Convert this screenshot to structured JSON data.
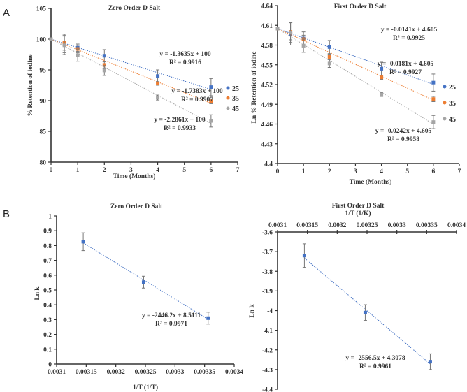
{
  "panels": {
    "a": "A",
    "b": "B"
  },
  "chart_data": [
    {
      "type": "scatter",
      "title": "Zero Order D Salt",
      "xlabel": "Time (Months)",
      "ylabel": "% Retention of iodine",
      "xlim": [
        0,
        7
      ],
      "ylim": [
        80,
        105
      ],
      "xticks": [
        "0",
        "1",
        "2",
        "3",
        "4",
        "5",
        "6",
        "7"
      ],
      "yticks": [
        "80",
        "85",
        "90",
        "95",
        "100",
        "105"
      ],
      "x": [
        0,
        0.5,
        1,
        2,
        4,
        6
      ],
      "series": [
        {
          "name": "25",
          "color": "#4472C4",
          "values": [
            100,
            99.3,
            98.6,
            97.3,
            94.0,
            92.2
          ],
          "errors": [
            0,
            1.5,
            0.6,
            1.0,
            1.0,
            1.4
          ],
          "trend": {
            "slope": -1.3635,
            "intercept": 100,
            "equation": "y = -1.3635x + 100",
            "r2": "R² = 0.9916"
          }
        },
        {
          "name": "35",
          "color": "#ED7D31",
          "values": [
            100,
            99.4,
            98.4,
            95.8,
            92.8,
            89.9
          ],
          "errors": [
            0,
            1.2,
            0.6,
            0.6,
            0.3,
            0.4
          ],
          "trend": {
            "slope": -1.7383,
            "intercept": 100,
            "equation": "y = -1.7383x + 100",
            "r2": "R² = 0.9907"
          }
        },
        {
          "name": "45",
          "color": "#A5A5A5",
          "values": [
            100,
            99.0,
            97.4,
            94.9,
            90.5,
            86.7
          ],
          "errors": [
            0,
            1.5,
            1.0,
            0.8,
            0.4,
            1.0
          ],
          "trend": {
            "slope": -2.2861,
            "intercept": 100,
            "equation": "y = -2.2861x + 100",
            "r2": "R² = 0.9933"
          }
        }
      ],
      "legend": "right"
    },
    {
      "type": "scatter",
      "title": "First Order D Salt",
      "xlabel": "Time (Months)",
      "ylabel": "Ln % Retention of iodine",
      "xlim": [
        0,
        7
      ],
      "ylim": [
        4.4,
        4.64
      ],
      "xticks": [
        "0",
        "1",
        "2",
        "3",
        "4",
        "5",
        "6",
        "7"
      ],
      "yticks": [
        "4.4",
        "4.43",
        "4.46",
        "4.49",
        "4.52",
        "4.55",
        "4.58",
        "4.61",
        "4.64"
      ],
      "x": [
        0,
        0.5,
        1,
        2,
        4,
        6
      ],
      "series": [
        {
          "name": "25",
          "color": "#4472C4",
          "values": [
            4.605,
            4.597,
            4.59,
            4.577,
            4.544,
            4.523
          ],
          "errors": [
            0,
            0.017,
            0.01,
            0.01,
            0.01,
            0.013
          ],
          "trend": {
            "slope": -0.0141,
            "intercept": 4.605,
            "equation": "y = -0.0141x + 4.605",
            "r2": "R² = 0.9925"
          }
        },
        {
          "name": "35",
          "color": "#ED7D31",
          "values": [
            4.605,
            4.6,
            4.589,
            4.562,
            4.531,
            4.498
          ],
          "errors": [
            0,
            0.012,
            0.006,
            0.004,
            0.003,
            0.004
          ],
          "trend": {
            "slope": -0.0181,
            "intercept": 4.605,
            "equation": "y = -0.0181x + 4.605",
            "r2": "R² = 0.9927"
          }
        },
        {
          "name": "45",
          "color": "#A5A5A5",
          "values": [
            4.605,
            4.599,
            4.579,
            4.552,
            4.505,
            4.463
          ],
          "errors": [
            0,
            0.015,
            0.01,
            0.006,
            0.003,
            0.01
          ],
          "trend": {
            "slope": -0.0242,
            "intercept": 4.605,
            "equation": "y = -0.0242x + 4.605",
            "r2": "R² = 0.9958"
          }
        }
      ],
      "legend": "right"
    },
    {
      "type": "scatter",
      "title": "Zero Order D Salt",
      "xlabel": "1/T (1/T)",
      "ylabel": "Ln k",
      "xlim": [
        0.0031,
        0.0034
      ],
      "ylim": [
        0,
        1
      ],
      "xticks": [
        "0.0031",
        "0.00315",
        "0.0032",
        "0.00325",
        "0.0033",
        "0.00335",
        "0.0034"
      ],
      "yticks": [
        "0",
        "0.1",
        "0.2",
        "0.3",
        "0.4",
        "0.5",
        "0.6",
        "0.7",
        "0.8",
        "0.9",
        "1"
      ],
      "x": [
        0.003145,
        0.003247,
        0.003356
      ],
      "series": [
        {
          "name": "Ln k",
          "color": "#4472C4",
          "values": [
            0.826,
            0.553,
            0.31
          ],
          "errors": [
            0.06,
            0.04,
            0.04
          ],
          "trend": {
            "slope": -2446.2,
            "intercept": 8.5111,
            "equation": "y = -2446.2x + 8.5111",
            "r2": "R² = 0.9971"
          }
        }
      ],
      "legend": "none"
    },
    {
      "type": "scatter",
      "title": "First Order D Salt",
      "xlabel": "1/T (1/K)",
      "ylabel": "Ln k",
      "xlim": [
        0.0031,
        0.0034
      ],
      "ylim": [
        -4.4,
        -3.6
      ],
      "xticks": [
        "0.0031",
        "0.00315",
        "0.0032",
        "0.00325",
        "0.0033",
        "0.00335",
        "0.0034"
      ],
      "yticks": [
        "-4.4",
        "-4.3",
        "-4.2",
        "-4.1",
        "-4",
        "-3.9",
        "-3.8",
        "-3.7",
        "-3.6"
      ],
      "x": [
        0.003145,
        0.003247,
        0.003356
      ],
      "series": [
        {
          "name": "Ln k",
          "color": "#4472C4",
          "values": [
            -3.72,
            -4.01,
            -4.26
          ],
          "errors": [
            0.06,
            0.04,
            0.04
          ],
          "trend": {
            "slope": -2556.5,
            "intercept": 4.3078,
            "equation": "y = -2556.5x + 4.3078",
            "r2": "R² = 0.9961"
          }
        }
      ],
      "legend": "none"
    }
  ]
}
